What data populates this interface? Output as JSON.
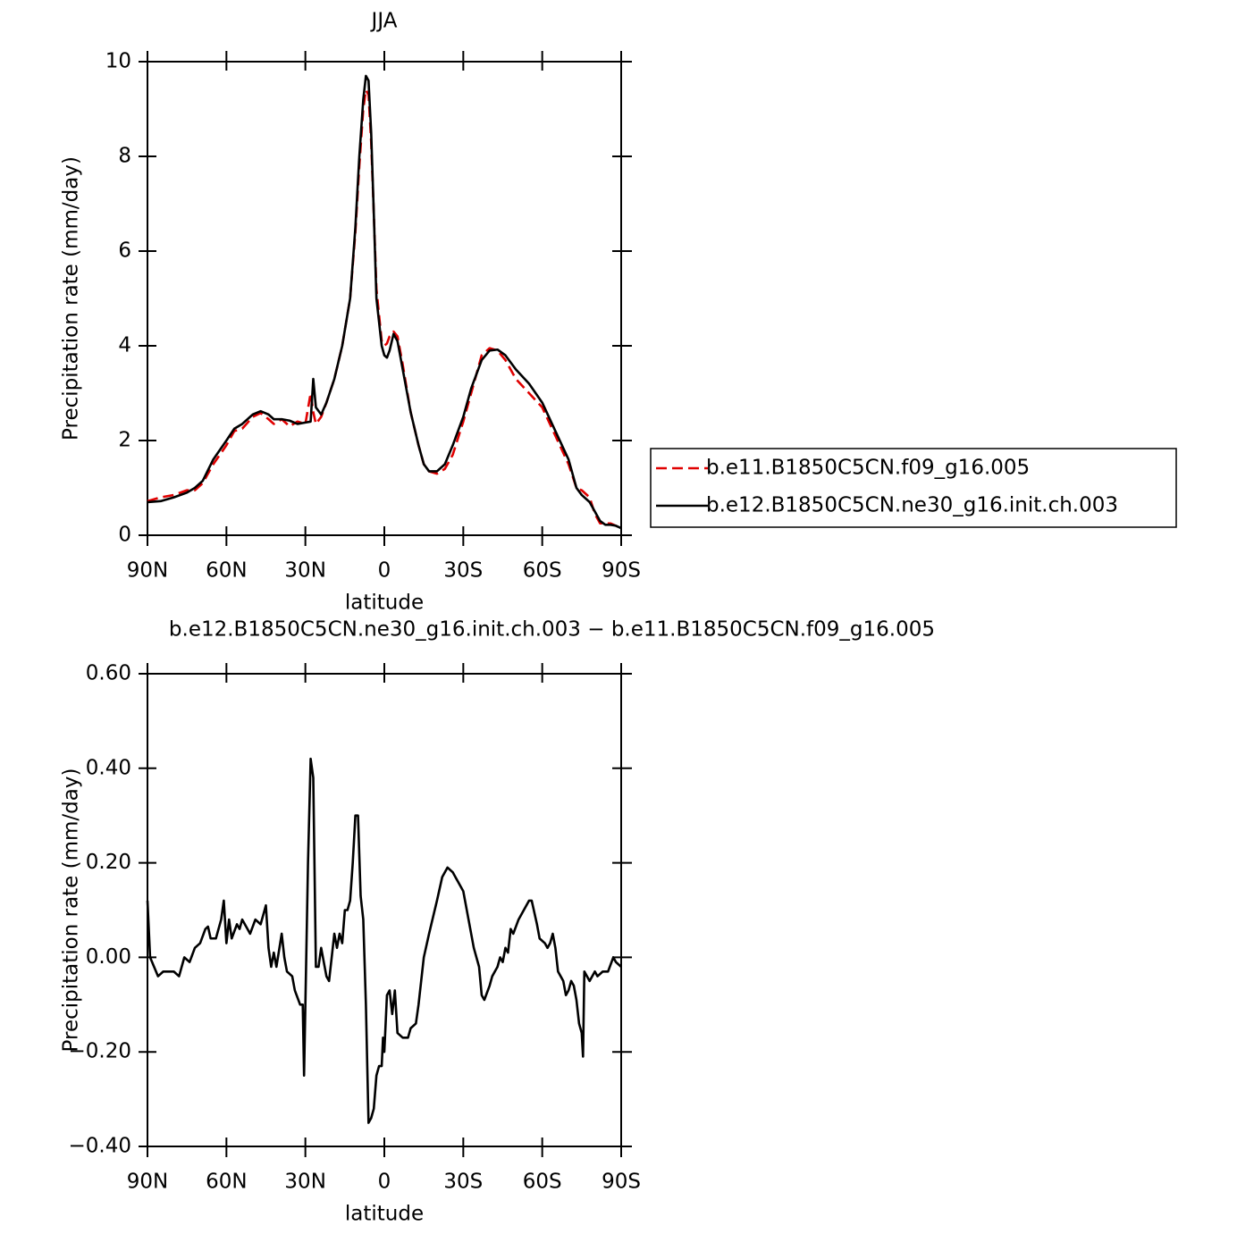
{
  "chart_data": [
    {
      "type": "line",
      "title": "JJA",
      "xlabel": "latitude",
      "ylabel": "Precipitation rate (mm/day)",
      "x": [
        90,
        85,
        80,
        75,
        72,
        69,
        65,
        60,
        57,
        54,
        50,
        47,
        44,
        42,
        39,
        36,
        33,
        30,
        28,
        27,
        26,
        24,
        22,
        19,
        16,
        13,
        11,
        9.5,
        8,
        7,
        6,
        5,
        4,
        3,
        1,
        0,
        -1,
        -2,
        -3.5,
        -5,
        -7,
        -10,
        -13,
        -15,
        -17,
        -20,
        -23,
        -26,
        -30,
        -33,
        -37,
        -40,
        -43,
        -46,
        -50,
        -55,
        -60,
        -65,
        -70,
        -73,
        -75,
        -78,
        -80,
        -82,
        -84,
        -86,
        -88,
        -90
      ],
      "series": [
        {
          "name": "b.e11.B1850C5CN.f09_g16.005",
          "color": "#e00000",
          "dash": true,
          "values": [
            0.72,
            0.8,
            0.85,
            0.95,
            0.95,
            1.1,
            1.5,
            1.9,
            2.2,
            2.25,
            2.5,
            2.58,
            2.45,
            2.35,
            2.45,
            2.3,
            2.4,
            2.35,
            3.0,
            2.6,
            2.35,
            2.5,
            2.8,
            3.3,
            4.0,
            5.0,
            6.4,
            7.8,
            9.0,
            9.4,
            9.3,
            8.3,
            6.8,
            5.2,
            4.1,
            4.0,
            4.05,
            4.2,
            4.3,
            4.2,
            3.6,
            2.6,
            1.9,
            1.5,
            1.35,
            1.3,
            1.4,
            1.7,
            2.4,
            3.0,
            3.8,
            3.95,
            3.9,
            3.7,
            3.3,
            3.0,
            2.7,
            2.1,
            1.5,
            1.0,
            0.95,
            0.8,
            0.45,
            0.25,
            0.25,
            0.25,
            0.2,
            0.15
          ]
        },
        {
          "name": "b.e12.B1850C5CN.ne30_g16.init.ch.003",
          "color": "#000000",
          "dash": false,
          "values": [
            0.7,
            0.72,
            0.8,
            0.9,
            1.0,
            1.15,
            1.6,
            2.0,
            2.25,
            2.35,
            2.55,
            2.62,
            2.55,
            2.45,
            2.45,
            2.42,
            2.35,
            2.38,
            2.4,
            3.3,
            2.7,
            2.55,
            2.8,
            3.3,
            4.0,
            5.0,
            6.5,
            8.0,
            9.2,
            9.7,
            9.6,
            8.5,
            6.8,
            5.0,
            4.0,
            3.8,
            3.75,
            3.9,
            4.25,
            4.1,
            3.5,
            2.6,
            1.9,
            1.5,
            1.35,
            1.35,
            1.5,
            1.9,
            2.5,
            3.1,
            3.7,
            3.9,
            3.92,
            3.8,
            3.5,
            3.2,
            2.8,
            2.2,
            1.6,
            1.0,
            0.85,
            0.7,
            0.5,
            0.3,
            0.22,
            0.22,
            0.2,
            0.15
          ]
        }
      ],
      "xlim": [
        90,
        -90
      ],
      "xticks": [
        {
          "value": 90,
          "label": "90N"
        },
        {
          "value": 60,
          "label": "60N"
        },
        {
          "value": 30,
          "label": "30N"
        },
        0,
        {
          "value": -30,
          "label": "30S"
        },
        {
          "value": -60,
          "label": "60S"
        },
        {
          "value": -90,
          "label": "90S"
        }
      ],
      "ylim": [
        0,
        10
      ],
      "yticks": [
        0,
        2,
        4,
        6,
        8,
        10
      ],
      "legend": "right"
    },
    {
      "type": "line",
      "title": "b.e12.B1850C5CN.ne30_g16.init.ch.003 − b.e11.B1850C5CN.f09_g16.005",
      "xlabel": "latitude",
      "ylabel": "Precipitation rate (mm/day)",
      "x": [
        90,
        89,
        86,
        84,
        80,
        78,
        76,
        74,
        72,
        70,
        68,
        67,
        66,
        64,
        62,
        61,
        60,
        59,
        58,
        56,
        55,
        54,
        52,
        51,
        49,
        47,
        45,
        44,
        43,
        42,
        41,
        39,
        38,
        37,
        35,
        34,
        32,
        31,
        30.5,
        29,
        28,
        27,
        26,
        25,
        24,
        22,
        21,
        19,
        18,
        17,
        16,
        15,
        14,
        13,
        12,
        11,
        10,
        9,
        8,
        7,
        6,
        5,
        4,
        3,
        2,
        1,
        0.5,
        0,
        -1,
        -2,
        -3,
        -4,
        -5,
        -7,
        -9,
        -10,
        -12,
        -13,
        -15,
        -17,
        -20,
        -22,
        -24,
        -26,
        -28,
        -30,
        -32,
        -34,
        -36,
        -37,
        -38,
        -40,
        -41,
        -42,
        -43,
        -44,
        -45,
        -46,
        -47,
        -48,
        -49,
        -51,
        -53,
        -55,
        -56,
        -58,
        -59,
        -61,
        -62,
        -63,
        -64,
        -65,
        -66,
        -67,
        -68,
        -69,
        -70,
        -71,
        -72,
        -73,
        -74,
        -75,
        -75.5,
        -76,
        -77,
        -78,
        -80,
        -81,
        -83,
        -85,
        -87,
        -88,
        -90
      ],
      "series": [
        {
          "color": "#000000",
          "values": [
            0.12,
            0.0,
            -0.04,
            -0.03,
            -0.03,
            -0.04,
            0.0,
            -0.01,
            0.02,
            0.03,
            0.06,
            0.065,
            0.04,
            0.04,
            0.08,
            0.12,
            0.03,
            0.08,
            0.04,
            0.07,
            0.06,
            0.08,
            0.06,
            0.05,
            0.08,
            0.07,
            0.11,
            0.02,
            -0.02,
            0.01,
            -0.02,
            0.05,
            0.0,
            -0.03,
            -0.04,
            -0.07,
            -0.1,
            -0.1,
            -0.25,
            0.2,
            0.42,
            0.38,
            -0.02,
            -0.02,
            0.02,
            -0.04,
            -0.05,
            0.05,
            0.02,
            0.05,
            0.03,
            0.1,
            0.1,
            0.12,
            0.2,
            0.3,
            0.3,
            0.13,
            0.08,
            -0.1,
            -0.35,
            -0.34,
            -0.32,
            -0.25,
            -0.23,
            -0.23,
            -0.17,
            -0.2,
            -0.08,
            -0.07,
            -0.12,
            -0.07,
            -0.16,
            -0.17,
            -0.17,
            -0.15,
            -0.14,
            -0.1,
            0.0,
            0.05,
            0.12,
            0.17,
            0.19,
            0.18,
            0.16,
            0.14,
            0.08,
            0.02,
            -0.02,
            -0.08,
            -0.09,
            -0.06,
            -0.04,
            -0.03,
            -0.02,
            0.0,
            -0.01,
            0.02,
            0.01,
            0.06,
            0.05,
            0.08,
            0.1,
            0.12,
            0.12,
            0.07,
            0.04,
            0.03,
            0.02,
            0.03,
            0.05,
            0.02,
            -0.03,
            -0.04,
            -0.05,
            -0.08,
            -0.07,
            -0.05,
            -0.06,
            -0.09,
            -0.14,
            -0.16,
            -0.21,
            -0.03,
            -0.04,
            -0.05,
            -0.03,
            -0.04,
            -0.03,
            -0.03,
            0.0,
            -0.01,
            -0.02
          ]
        }
      ],
      "xlim": [
        90,
        -90
      ],
      "xticks": [
        {
          "value": 90,
          "label": "90N"
        },
        {
          "value": 60,
          "label": "60N"
        },
        {
          "value": 30,
          "label": "30N"
        },
        0,
        {
          "value": -30,
          "label": "30S"
        },
        {
          "value": -60,
          "label": "60S"
        },
        {
          "value": -90,
          "label": "90S"
        }
      ],
      "ylim": [
        -0.4,
        0.6
      ],
      "yticks": [
        {
          "value": -0.4,
          "label": "−0.40"
        },
        {
          "value": -0.2,
          "label": "−0.20"
        },
        {
          "value": 0,
          "label": "0.00"
        },
        {
          "value": 0.2,
          "label": "0.20"
        },
        {
          "value": 0.4,
          "label": "0.40"
        },
        {
          "value": 0.6,
          "label": "0.60"
        }
      ]
    }
  ]
}
